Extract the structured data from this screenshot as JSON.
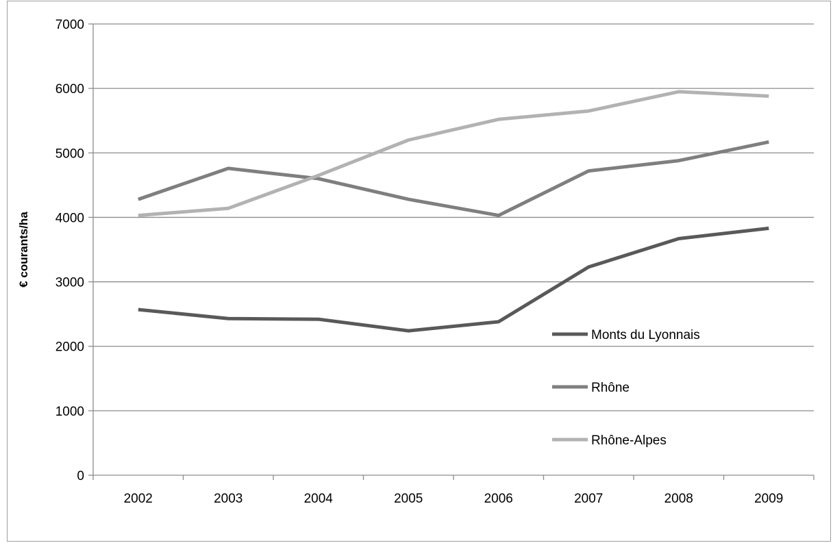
{
  "chart_data": {
    "type": "line",
    "title": "",
    "xlabel": "",
    "ylabel": "€ courants/ha",
    "x": [
      "2002",
      "2003",
      "2004",
      "2005",
      "2006",
      "2007",
      "2008",
      "2009"
    ],
    "ylim": [
      0,
      7000
    ],
    "yticks": [
      0,
      1000,
      2000,
      3000,
      4000,
      5000,
      6000,
      7000
    ],
    "grid": true,
    "legend_position": "right-center",
    "series": [
      {
        "name": "Monts du Lyonnais",
        "color": "#595959",
        "values": [
          2570,
          2430,
          2420,
          2240,
          2380,
          3230,
          3670,
          3830
        ]
      },
      {
        "name": "Rhône",
        "color": "#7f7f7f",
        "values": [
          4280,
          4760,
          4600,
          4280,
          4030,
          4720,
          4880,
          5170
        ]
      },
      {
        "name": "Rhône-Alpes",
        "color": "#b2b2b2",
        "values": [
          4030,
          4140,
          4650,
          5200,
          5520,
          5650,
          5950,
          5880
        ]
      }
    ]
  }
}
